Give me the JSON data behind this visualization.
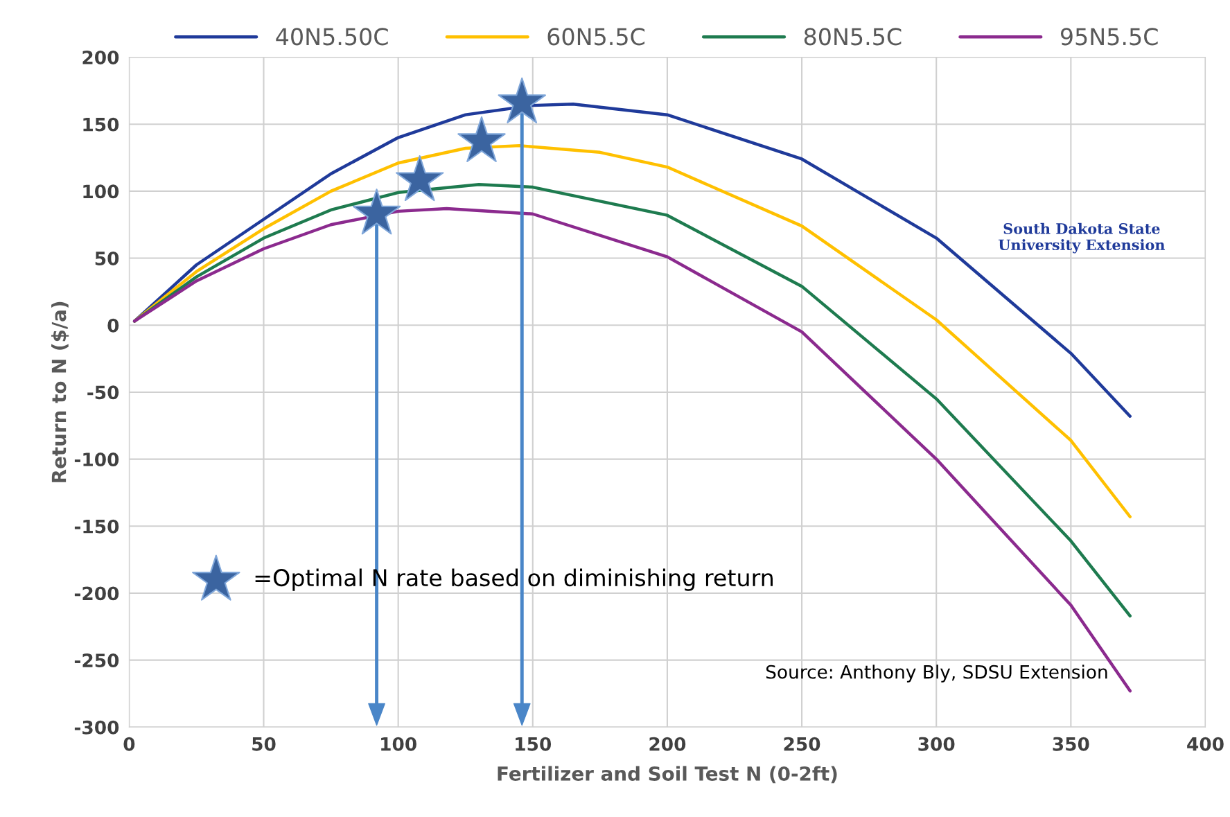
{
  "chart_data": {
    "type": "line",
    "xlabel": "Fertilizer and Soil Test N (0-2ft)",
    "ylabel": "Return to N ($/a)",
    "xlim": [
      0,
      400
    ],
    "xticks": [
      0,
      50,
      100,
      150,
      200,
      250,
      300,
      350,
      400
    ],
    "ylim": [
      -300,
      200
    ],
    "yticks": [
      -300,
      -250,
      -200,
      -150,
      -100,
      -50,
      0,
      50,
      100,
      150,
      200
    ],
    "grid": true,
    "legend": "top",
    "marker": "none",
    "line_style": "solid",
    "series": [
      {
        "name": "40N5.50C",
        "color": "#1f3a9a",
        "x": [
          2,
          25,
          50,
          75,
          100,
          125,
          150,
          165,
          200,
          250,
          300,
          350,
          372
        ],
        "values": [
          3,
          45,
          79,
          113,
          140,
          157,
          164,
          165,
          157,
          124,
          65,
          -21,
          -68
        ]
      },
      {
        "name": "60N5.5C",
        "color": "#ffc000",
        "x": [
          2,
          25,
          50,
          75,
          100,
          125,
          145,
          175,
          200,
          250,
          300,
          350,
          372
        ],
        "values": [
          3,
          40,
          72,
          100,
          121,
          132,
          134,
          129,
          118,
          74,
          4,
          -86,
          -143
        ]
      },
      {
        "name": "80N5.5C",
        "color": "#1e7b4f",
        "x": [
          2,
          25,
          50,
          75,
          100,
          130,
          150,
          200,
          250,
          300,
          350,
          372
        ],
        "values": [
          3,
          36,
          65,
          86,
          99,
          105,
          103,
          82,
          29,
          -55,
          -161,
          -217
        ]
      },
      {
        "name": "95N5.5C",
        "color": "#8b2a8e",
        "x": [
          2,
          25,
          50,
          75,
          100,
          118,
          150,
          200,
          250,
          300,
          350,
          372
        ],
        "values": [
          3,
          33,
          57,
          75,
          85,
          87,
          83,
          51,
          -5,
          -100,
          -209,
          -273
        ]
      },
      {
        "name": "=Optimal N rate based on diminishing return",
        "type": "scatter",
        "marker": "star",
        "color": "#3b64a0",
        "x": [
          92,
          108,
          131,
          146
        ],
        "values": [
          83,
          108,
          137,
          166
        ]
      }
    ],
    "annotations": [
      "Source: Anthony Bly, SDSU Extension",
      "South Dakota State\nUniversity Extension"
    ]
  }
}
